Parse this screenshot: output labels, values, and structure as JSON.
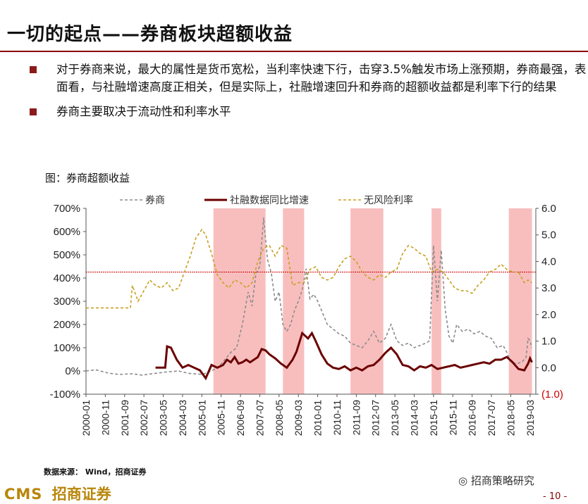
{
  "slide": {
    "title": "一切的起点——券商板块超额收益",
    "bullets": [
      "对于券商来说，最大的属性是货币宽松，当利率快速下行，击穿3.5%触发市场上涨预期，券商最强，表面看，与社融增速高度正相关，但是实际上，社融增速回升和券商的超额收益都是利率下行的结果",
      "券商主要取决于流动性和利率水平"
    ],
    "figure_caption": "图：券商超额收益",
    "source": "数据来源： Wind，招商证券",
    "logo_cms": "CMS",
    "logo_name": "招商证券",
    "wechat": "招商策略研究",
    "page_number": "- 10 -"
  },
  "chart_data": {
    "type": "line",
    "x_ticks": [
      "2000-01",
      "2000-11",
      "2001-09",
      "2002-07",
      "2003-05",
      "2004-03",
      "2005-01",
      "2005-11",
      "2006-09",
      "2007-07",
      "2008-05",
      "2009-03",
      "2010-01",
      "2010-11",
      "2011-09",
      "2012-07",
      "2013-05",
      "2014-03",
      "2015-01",
      "2015-11",
      "2016-09",
      "2017-07",
      "2018-05",
      "2019-03"
    ],
    "y_left": {
      "ticks": [
        "700%",
        "600%",
        "500%",
        "400%",
        "300%",
        "200%",
        "100%",
        "0%",
        "-100%"
      ],
      "min": -100,
      "max": 700
    },
    "y_right": {
      "ticks": [
        "6.0",
        "5.0",
        "4.0",
        "3.0",
        "2.0",
        "1.0",
        "0.0",
        "(1.0)"
      ],
      "min": -1,
      "max": 6
    },
    "legend": [
      "券商",
      "社融数据同比增速",
      "无风险利率"
    ],
    "reference_line_right_axis": 3.6,
    "shaded_periods": [
      [
        "2005-07",
        "2007-10"
      ],
      [
        "2008-07",
        "2009-06"
      ],
      [
        "2011-06",
        "2012-11"
      ],
      [
        "2014-12",
        "2015-05"
      ],
      [
        "2018-04",
        "2019-04"
      ]
    ],
    "series": [
      {
        "name": "券商",
        "axis": "left",
        "color": "#8c8c8c",
        "dash": "dashed",
        "points": [
          [
            "2000-01",
            0
          ],
          [
            "2000-06",
            5
          ],
          [
            "2001-01",
            -10
          ],
          [
            "2001-06",
            -15
          ],
          [
            "2002-01",
            -12
          ],
          [
            "2002-06",
            -18
          ],
          [
            "2003-01",
            -10
          ],
          [
            "2003-06",
            -5
          ],
          [
            "2004-01",
            0
          ],
          [
            "2004-06",
            -10
          ],
          [
            "2005-01",
            -15
          ],
          [
            "2005-06",
            0
          ],
          [
            "2005-10",
            20
          ],
          [
            "2006-01",
            50
          ],
          [
            "2006-04",
            80
          ],
          [
            "2006-07",
            100
          ],
          [
            "2006-10",
            200
          ],
          [
            "2007-01",
            340
          ],
          [
            "2007-03",
            280
          ],
          [
            "2007-05",
            420
          ],
          [
            "2007-07",
            450
          ],
          [
            "2007-09",
            660
          ],
          [
            "2007-11",
            480
          ],
          [
            "2008-01",
            420
          ],
          [
            "2008-03",
            300
          ],
          [
            "2008-05",
            340
          ],
          [
            "2008-07",
            200
          ],
          [
            "2008-09",
            170
          ],
          [
            "2008-11",
            200
          ],
          [
            "2009-01",
            260
          ],
          [
            "2009-03",
            300
          ],
          [
            "2009-05",
            350
          ],
          [
            "2009-07",
            440
          ],
          [
            "2009-09",
            310
          ],
          [
            "2009-11",
            330
          ],
          [
            "2010-01",
            300
          ],
          [
            "2010-03",
            260
          ],
          [
            "2010-06",
            200
          ],
          [
            "2010-09",
            180
          ],
          [
            "2010-12",
            160
          ],
          [
            "2011-03",
            150
          ],
          [
            "2011-06",
            120
          ],
          [
            "2011-09",
            110
          ],
          [
            "2011-12",
            100
          ],
          [
            "2012-03",
            130
          ],
          [
            "2012-06",
            170
          ],
          [
            "2012-09",
            120
          ],
          [
            "2012-12",
            140
          ],
          [
            "2013-03",
            200
          ],
          [
            "2013-06",
            130
          ],
          [
            "2013-09",
            110
          ],
          [
            "2013-12",
            120
          ],
          [
            "2014-03",
            100
          ],
          [
            "2014-06",
            110
          ],
          [
            "2014-09",
            120
          ],
          [
            "2014-11",
            130
          ],
          [
            "2015-01",
            540
          ],
          [
            "2015-03",
            300
          ],
          [
            "2015-05",
            520
          ],
          [
            "2015-07",
            270
          ],
          [
            "2015-09",
            150
          ],
          [
            "2015-11",
            120
          ],
          [
            "2016-01",
            200
          ],
          [
            "2016-04",
            170
          ],
          [
            "2016-07",
            180
          ],
          [
            "2016-10",
            160
          ],
          [
            "2017-01",
            170
          ],
          [
            "2017-04",
            150
          ],
          [
            "2017-07",
            140
          ],
          [
            "2017-10",
            100
          ],
          [
            "2018-01",
            110
          ],
          [
            "2018-03",
            80
          ],
          [
            "2018-05",
            40
          ],
          [
            "2018-08",
            30
          ],
          [
            "2018-11",
            40
          ],
          [
            "2019-01",
            60
          ],
          [
            "2019-02",
            140
          ],
          [
            "2019-03",
            130
          ],
          [
            "2019-04",
            100
          ]
        ]
      },
      {
        "name": "社融数据同比增速",
        "axis": "right",
        "color": "#6b0000",
        "dash": "solid",
        "points": [
          [
            "2003-01",
            0.0
          ],
          [
            "2003-06",
            0.0
          ],
          [
            "2003-07",
            0.8
          ],
          [
            "2003-09",
            0.75
          ],
          [
            "2003-12",
            0.3
          ],
          [
            "2004-03",
            0.0
          ],
          [
            "2004-06",
            0.1
          ],
          [
            "2004-09",
            0.0
          ],
          [
            "2004-12",
            -0.1
          ],
          [
            "2005-03",
            -0.4
          ],
          [
            "2005-06",
            0.1
          ],
          [
            "2005-09",
            0.0
          ],
          [
            "2005-12",
            0.1
          ],
          [
            "2006-02",
            0.3
          ],
          [
            "2006-04",
            0.2
          ],
          [
            "2006-06",
            0.4
          ],
          [
            "2006-08",
            0.15
          ],
          [
            "2006-10",
            0.2
          ],
          [
            "2006-12",
            0.3
          ],
          [
            "2007-02",
            0.2
          ],
          [
            "2007-04",
            0.3
          ],
          [
            "2007-06",
            0.4
          ],
          [
            "2007-08",
            0.7
          ],
          [
            "2007-10",
            0.65
          ],
          [
            "2007-12",
            0.5
          ],
          [
            "2008-03",
            0.35
          ],
          [
            "2008-06",
            0.15
          ],
          [
            "2008-09",
            0.0
          ],
          [
            "2008-12",
            0.3
          ],
          [
            "2009-02",
            0.6
          ],
          [
            "2009-05",
            1.3
          ],
          [
            "2009-08",
            1.1
          ],
          [
            "2009-10",
            1.3
          ],
          [
            "2009-12",
            1.0
          ],
          [
            "2010-03",
            0.5
          ],
          [
            "2010-06",
            0.15
          ],
          [
            "2010-09",
            0.0
          ],
          [
            "2010-12",
            -0.05
          ],
          [
            "2011-03",
            0.05
          ],
          [
            "2011-06",
            -0.1
          ],
          [
            "2011-09",
            0.0
          ],
          [
            "2011-12",
            -0.1
          ],
          [
            "2012-03",
            0.05
          ],
          [
            "2012-06",
            0.1
          ],
          [
            "2012-09",
            0.3
          ],
          [
            "2012-12",
            0.55
          ],
          [
            "2013-03",
            0.75
          ],
          [
            "2013-06",
            0.5
          ],
          [
            "2013-09",
            0.1
          ],
          [
            "2013-12",
            0.05
          ],
          [
            "2014-03",
            -0.1
          ],
          [
            "2014-06",
            0.05
          ],
          [
            "2014-09",
            0.0
          ],
          [
            "2014-12",
            0.1
          ],
          [
            "2015-03",
            -0.05
          ],
          [
            "2015-06",
            0.0
          ],
          [
            "2015-09",
            0.05
          ],
          [
            "2015-12",
            0.1
          ],
          [
            "2016-03",
            0.0
          ],
          [
            "2016-06",
            0.05
          ],
          [
            "2016-09",
            0.1
          ],
          [
            "2016-12",
            0.15
          ],
          [
            "2017-03",
            0.2
          ],
          [
            "2017-06",
            0.15
          ],
          [
            "2017-09",
            0.3
          ],
          [
            "2017-12",
            0.3
          ],
          [
            "2018-03",
            0.4
          ],
          [
            "2018-06",
            0.2
          ],
          [
            "2018-09",
            -0.05
          ],
          [
            "2018-12",
            -0.1
          ],
          [
            "2019-02",
            0.15
          ],
          [
            "2019-03",
            0.35
          ],
          [
            "2019-04",
            0.2
          ]
        ]
      },
      {
        "name": "无风险利率",
        "axis": "right",
        "color": "#c8a020",
        "dash": "dashed",
        "points": [
          [
            "2000-01",
            2.25
          ],
          [
            "2001-12",
            2.25
          ],
          [
            "2002-01",
            3.1
          ],
          [
            "2002-04",
            2.5
          ],
          [
            "2002-07",
            2.9
          ],
          [
            "2002-10",
            3.3
          ],
          [
            "2003-01",
            3.1
          ],
          [
            "2003-04",
            3.0
          ],
          [
            "2003-07",
            3.2
          ],
          [
            "2003-10",
            2.9
          ],
          [
            "2004-01",
            3.0
          ],
          [
            "2004-04",
            3.6
          ],
          [
            "2004-07",
            4.2
          ],
          [
            "2004-10",
            4.9
          ],
          [
            "2005-01",
            5.2
          ],
          [
            "2005-03",
            5.0
          ],
          [
            "2005-06",
            4.3
          ],
          [
            "2005-09",
            3.5
          ],
          [
            "2005-12",
            3.2
          ],
          [
            "2006-03",
            3.0
          ],
          [
            "2006-06",
            3.3
          ],
          [
            "2006-09",
            3.2
          ],
          [
            "2006-12",
            3.0
          ],
          [
            "2007-03",
            3.2
          ],
          [
            "2007-06",
            4.0
          ],
          [
            "2007-09",
            4.5
          ],
          [
            "2007-12",
            4.6
          ],
          [
            "2008-03",
            4.2
          ],
          [
            "2008-06",
            4.6
          ],
          [
            "2008-09",
            4.5
          ],
          [
            "2008-12",
            3.1
          ],
          [
            "2009-03",
            3.2
          ],
          [
            "2009-06",
            3.2
          ],
          [
            "2009-09",
            3.7
          ],
          [
            "2009-12",
            3.8
          ],
          [
            "2010-03",
            3.4
          ],
          [
            "2010-06",
            3.3
          ],
          [
            "2010-09",
            3.4
          ],
          [
            "2010-12",
            3.8
          ],
          [
            "2011-03",
            4.1
          ],
          [
            "2011-06",
            4.2
          ],
          [
            "2011-09",
            4.0
          ],
          [
            "2011-12",
            3.6
          ],
          [
            "2012-03",
            3.4
          ],
          [
            "2012-06",
            3.3
          ],
          [
            "2012-09",
            3.5
          ],
          [
            "2012-12",
            3.4
          ],
          [
            "2013-03",
            3.6
          ],
          [
            "2013-06",
            3.7
          ],
          [
            "2013-09",
            4.3
          ],
          [
            "2013-12",
            4.6
          ],
          [
            "2014-03",
            4.5
          ],
          [
            "2014-06",
            4.3
          ],
          [
            "2014-09",
            4.2
          ],
          [
            "2014-12",
            3.6
          ],
          [
            "2015-03",
            3.7
          ],
          [
            "2015-06",
            3.6
          ],
          [
            "2015-09",
            3.3
          ],
          [
            "2015-12",
            3.0
          ],
          [
            "2016-03",
            2.9
          ],
          [
            "2016-06",
            2.9
          ],
          [
            "2016-09",
            2.8
          ],
          [
            "2016-12",
            3.1
          ],
          [
            "2017-03",
            3.3
          ],
          [
            "2017-06",
            3.6
          ],
          [
            "2017-09",
            3.7
          ],
          [
            "2017-12",
            3.9
          ],
          [
            "2018-03",
            3.7
          ],
          [
            "2018-06",
            3.6
          ],
          [
            "2018-09",
            3.6
          ],
          [
            "2018-12",
            3.2
          ],
          [
            "2019-02",
            3.3
          ],
          [
            "2019-04",
            3.2
          ]
        ]
      }
    ]
  }
}
